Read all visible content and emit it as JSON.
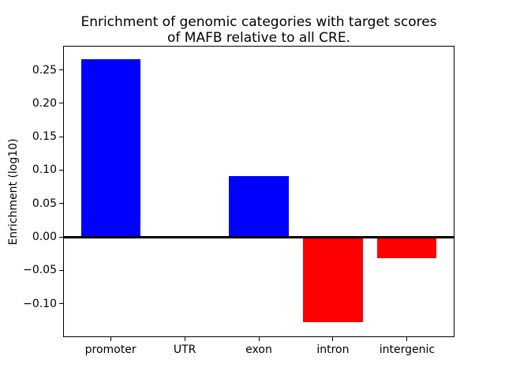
{
  "chart_data": {
    "type": "bar",
    "title": "Enrichment of genomic categories with target scores\nof MAFB relative to all CRE.",
    "xlabel": "",
    "ylabel": "Enrichment (log10)",
    "categories": [
      "promoter",
      "UTR",
      "exon",
      "intron",
      "intergenic"
    ],
    "values": [
      0.266,
      0.0,
      0.091,
      -0.128,
      -0.032
    ],
    "bar_colors": [
      "#0000ff",
      "#0000ff",
      "#0000ff",
      "#ff0000",
      "#ff0000"
    ],
    "positive_color": "#0000ff",
    "negative_color": "#ff0000",
    "yticks": [
      0.25,
      0.2,
      0.15,
      0.1,
      0.05,
      0.0,
      -0.05,
      -0.1
    ],
    "ytick_labels": [
      "0.25",
      "0.20",
      "0.15",
      "0.10",
      "0.05",
      "0.00",
      "−0.05",
      "−0.10"
    ],
    "ylim": [
      -0.15,
      0.286
    ],
    "xlim": [
      -0.64,
      4.64
    ],
    "bar_width": 0.8,
    "zero_line": true,
    "grid": false,
    "legend": null,
    "background_color": "#ffffff",
    "axis_color": "#000000"
  }
}
